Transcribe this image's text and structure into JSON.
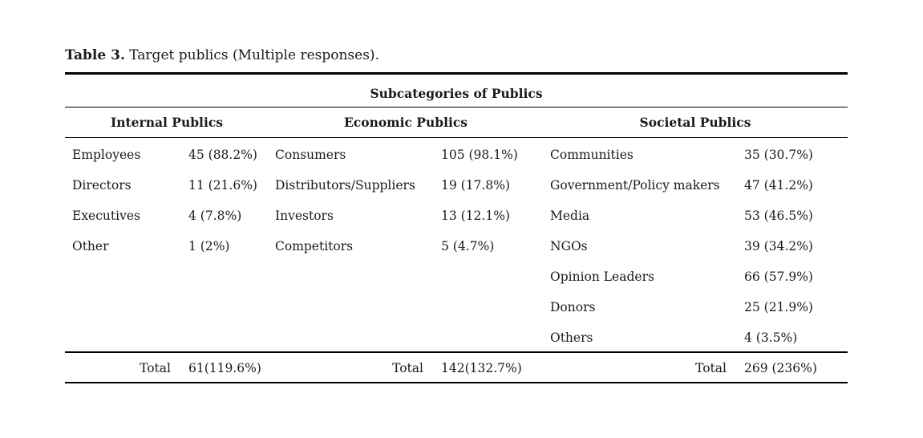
{
  "caption": {
    "label": "Table 3.",
    "text": " Target publics (Multiple responses)."
  },
  "table": {
    "header": "Subcategories of Publics",
    "groups": [
      {
        "name": "Internal Publics",
        "rows": [
          {
            "label": "Employees",
            "value": "45 (88.2%)"
          },
          {
            "label": "Directors",
            "value": "11 (21.6%)"
          },
          {
            "label": "Executives",
            "value": "4 (7.8%)"
          },
          {
            "label": "Other",
            "value": "1 (2%)"
          }
        ],
        "total_label": "Total",
        "total_value": "61(119.6%)"
      },
      {
        "name": "Economic Publics",
        "rows": [
          {
            "label": "Consumers",
            "value": "105 (98.1%)"
          },
          {
            "label": "Distributors/Suppliers",
            "value": "19 (17.8%)"
          },
          {
            "label": "Investors",
            "value": "13 (12.1%)"
          },
          {
            "label": "Competitors",
            "value": "5 (4.7%)"
          }
        ],
        "total_label": "Total",
        "total_value": "142(132.7%)"
      },
      {
        "name": "Societal Publics",
        "rows": [
          {
            "label": "Communities",
            "value": "35 (30.7%)"
          },
          {
            "label": "Government/Policy makers",
            "value": "47 (41.2%)"
          },
          {
            "label": "Media",
            "value": "53 (46.5%)"
          },
          {
            "label": "NGOs",
            "value": "39 (34.2%)"
          },
          {
            "label": "Opinion Leaders",
            "value": "66 (57.9%)"
          },
          {
            "label": "Donors",
            "value": "25 (21.9%)"
          },
          {
            "label": "Others",
            "value": "4 (3.5%)"
          }
        ],
        "total_label": "Total",
        "total_value": "269 (236%)"
      }
    ]
  },
  "colors": {
    "background": "#ffffff",
    "text": "#1a1a1a",
    "rule": "#000000"
  }
}
